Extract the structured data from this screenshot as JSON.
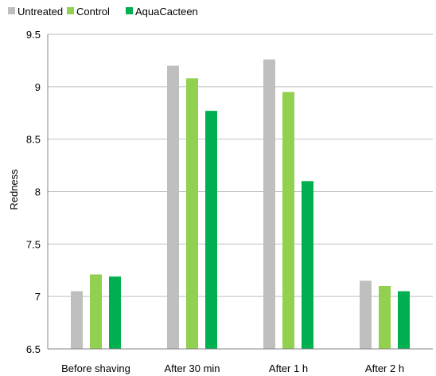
{
  "chart_data": {
    "type": "bar",
    "title": "",
    "xlabel": "",
    "ylabel": "Redness",
    "ylim": [
      6.5,
      9.5
    ],
    "yticks": [
      "6.5",
      "7",
      "7.5",
      "8",
      "8.5",
      "9",
      "9.5"
    ],
    "categories": [
      "Before shaving",
      "After 30 min",
      "After 1 h",
      "After 2 h"
    ],
    "series": [
      {
        "name": "Untreated",
        "color": "#bfbfbf",
        "values": [
          7.05,
          9.2,
          9.26,
          7.15
        ]
      },
      {
        "name": "Control",
        "color": "#92d050",
        "values": [
          7.21,
          9.08,
          8.95,
          7.1
        ]
      },
      {
        "name": "AquaCacteen",
        "color": "#00b050",
        "values": [
          7.19,
          8.77,
          8.1,
          7.05
        ]
      }
    ],
    "grid": "horizontal",
    "legend_position": "top-left"
  }
}
